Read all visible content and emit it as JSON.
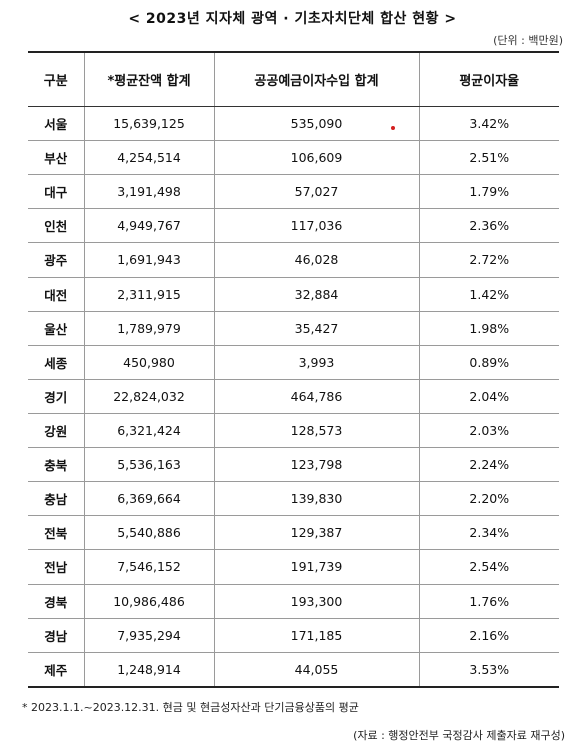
{
  "title": "< 2023년 지자체 광역 · 기초자치단체 합산 현황 >",
  "unit": "(단위 : 백만원)",
  "table": {
    "headers": [
      "구분",
      "*평균잔액 합계",
      "공공예금이자수입 합계",
      "평균이자율"
    ],
    "rows": [
      {
        "region": "서울",
        "balance": "15,639,125",
        "interest": "535,090",
        "rate": "3.42%"
      },
      {
        "region": "부산",
        "balance": "4,254,514",
        "interest": "106,609",
        "rate": "2.51%"
      },
      {
        "region": "대구",
        "balance": "3,191,498",
        "interest": "57,027",
        "rate": "1.79%"
      },
      {
        "region": "인천",
        "balance": "4,949,767",
        "interest": "117,036",
        "rate": "2.36%"
      },
      {
        "region": "광주",
        "balance": "1,691,943",
        "interest": "46,028",
        "rate": "2.72%"
      },
      {
        "region": "대전",
        "balance": "2,311,915",
        "interest": "32,884",
        "rate": "1.42%"
      },
      {
        "region": "울산",
        "balance": "1,789,979",
        "interest": "35,427",
        "rate": "1.98%"
      },
      {
        "region": "세종",
        "balance": "450,980",
        "interest": "3,993",
        "rate": "0.89%"
      },
      {
        "region": "경기",
        "balance": "22,824,032",
        "interest": "464,786",
        "rate": "2.04%"
      },
      {
        "region": "강원",
        "balance": "6,321,424",
        "interest": "128,573",
        "rate": "2.03%"
      },
      {
        "region": "충북",
        "balance": "5,536,163",
        "interest": "123,798",
        "rate": "2.24%"
      },
      {
        "region": "충남",
        "balance": "6,369,664",
        "interest": "139,830",
        "rate": "2.20%"
      },
      {
        "region": "전북",
        "balance": "5,540,886",
        "interest": "129,387",
        "rate": "2.34%"
      },
      {
        "region": "전남",
        "balance": "7,546,152",
        "interest": "191,739",
        "rate": "2.54%"
      },
      {
        "region": "경북",
        "balance": "10,986,486",
        "interest": "193,300",
        "rate": "1.76%"
      },
      {
        "region": "경남",
        "balance": "7,935,294",
        "interest": "171,185",
        "rate": "2.16%"
      },
      {
        "region": "제주",
        "balance": "1,248,914",
        "interest": "44,055",
        "rate": "3.53%"
      }
    ]
  },
  "footnote": "* 2023.1.1.~2023.12.31. 현금 및 현금성자산과 단기금융상품의 평균",
  "source": "(자료 : 행정안전부 국정감사 제출자료 재구성)",
  "colors": {
    "marker": "#d42020"
  }
}
